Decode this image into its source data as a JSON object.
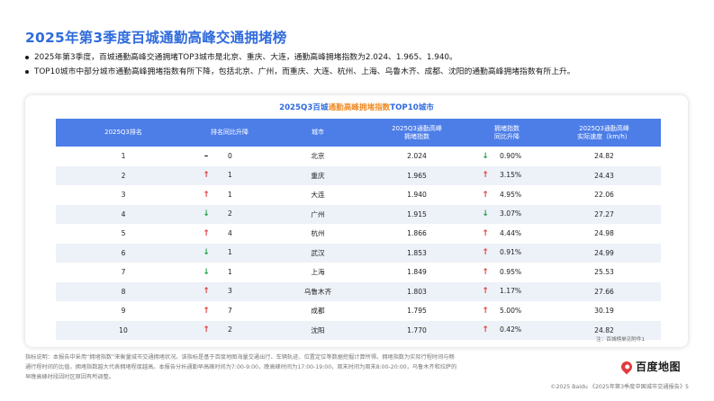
{
  "page": {
    "title": "2025年第3季度百城通勤高峰交通拥堵榜",
    "bullets": [
      "2025年第3季度，百城通勤高峰交通拥堵TOP3城市是北京、重庆、大连，通勤高峰拥堵指数为2.024、1.965、1.940。",
      "TOP10城市中部分城市通勤高峰拥堵指数有所下降，包括北京、广州，而重庆、大连、杭州、上海、乌鲁木齐、成都、沈阳的通勤高峰拥堵指数有所上升。"
    ]
  },
  "card": {
    "title_part1": "2025Q3百城",
    "title_part2": "通勤高峰拥堵指数",
    "title_part3": "TOP10城市",
    "footnote": "注：百城榜单见附件1"
  },
  "table": {
    "headers": {
      "rank": "2025Q3排名",
      "rank_change": "排名同比升降",
      "city": "城市",
      "index_line1": "2025Q3通勤高峰",
      "index_line2": "拥堵指数",
      "index_change_line1": "拥堵指数",
      "index_change_line2": "同比升降",
      "speed_line1": "2025Q3通勤高峰",
      "speed_line2": "实际速度（km/h）"
    },
    "arrow_glyphs": {
      "up": "↑",
      "down": "↓",
      "flat": "–"
    },
    "rows": [
      {
        "rank": "1",
        "rank_dir": "flat",
        "rank_change": "0",
        "city": "北京",
        "index": "2.024",
        "index_dir": "down",
        "index_change": "0.90%",
        "speed": "24.82"
      },
      {
        "rank": "2",
        "rank_dir": "up",
        "rank_change": "1",
        "city": "重庆",
        "index": "1.965",
        "index_dir": "up",
        "index_change": "3.15%",
        "speed": "24.43"
      },
      {
        "rank": "3",
        "rank_dir": "up",
        "rank_change": "1",
        "city": "大连",
        "index": "1.940",
        "index_dir": "up",
        "index_change": "4.95%",
        "speed": "22.06"
      },
      {
        "rank": "4",
        "rank_dir": "down",
        "rank_change": "2",
        "city": "广州",
        "index": "1.915",
        "index_dir": "down",
        "index_change": "3.07%",
        "speed": "27.27"
      },
      {
        "rank": "5",
        "rank_dir": "up",
        "rank_change": "4",
        "city": "杭州",
        "index": "1.866",
        "index_dir": "up",
        "index_change": "4.44%",
        "speed": "24.98"
      },
      {
        "rank": "6",
        "rank_dir": "down",
        "rank_change": "1",
        "city": "武汉",
        "index": "1.853",
        "index_dir": "up",
        "index_change": "0.91%",
        "speed": "24.99"
      },
      {
        "rank": "7",
        "rank_dir": "down",
        "rank_change": "1",
        "city": "上海",
        "index": "1.849",
        "index_dir": "up",
        "index_change": "0.95%",
        "speed": "25.53"
      },
      {
        "rank": "8",
        "rank_dir": "up",
        "rank_change": "3",
        "city": "乌鲁木齐",
        "index": "1.803",
        "index_dir": "up",
        "index_change": "1.17%",
        "speed": "27.66"
      },
      {
        "rank": "9",
        "rank_dir": "up",
        "rank_change": "7",
        "city": "成都",
        "index": "1.795",
        "index_dir": "up",
        "index_change": "5.00%",
        "speed": "30.19"
      },
      {
        "rank": "10",
        "rank_dir": "up",
        "rank_change": "2",
        "city": "沈阳",
        "index": "1.770",
        "index_dir": "up",
        "index_change": "0.42%",
        "speed": "24.82"
      }
    ]
  },
  "description": "指标说明：本报告中采用“拥堵指数”来衡量城市交通拥堵状况。该指标是基于百度地图海量交通出行、车辆轨迹、位置定位等数据挖掘计算所得。拥堵指数为实际行程时间与畅通行程时间的比值，拥堵指数越大代表拥堵程度越高。本报告分析通勤早高峰时间为7:00-9:00，晚高峰时间为17:00-19:00，周末时间为周末8:00-20:00，乌鲁木齐和拉萨的早晚高峰时段因时区原因有所调整。",
  "brand": {
    "name": "百度地图",
    "icon": "map-pin-icon"
  },
  "footer": {
    "text": "©2025 Baidu 《2025年第3季度中国城市交通报告》5"
  },
  "colors": {
    "accent": "#2f6bdc",
    "orange": "#f08a24",
    "header_bg": "#4d7ee8",
    "up": "#e23b3b",
    "down": "#20a14b"
  }
}
